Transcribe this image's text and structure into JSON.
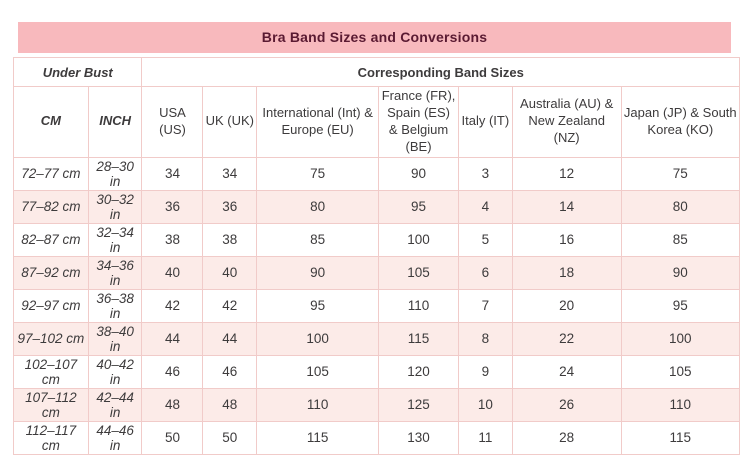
{
  "chart_data": {
    "type": "table",
    "title": "Bra Band Sizes and Conversions",
    "group_headers": [
      {
        "label": "Under Bust",
        "colspan": 2
      },
      {
        "label": "Corresponding Band Sizes",
        "colspan": 7
      }
    ],
    "columns": [
      "CM",
      "INCH",
      "USA (US)",
      "UK (UK)",
      "International (Int) & Europe (EU)",
      "France (FR), Spain (ES) & Belgium (BE)",
      "Italy (IT)",
      "Australia (AU) & New Zealand (NZ)",
      "Japan (JP) & South Korea (KO)"
    ],
    "rows": [
      [
        "72–77 cm",
        "28–30 in",
        "34",
        "34",
        "75",
        "90",
        "3",
        "12",
        "75"
      ],
      [
        "77–82 cm",
        "30–32 in",
        "36",
        "36",
        "80",
        "95",
        "4",
        "14",
        "80"
      ],
      [
        "82–87 cm",
        "32–34 in",
        "38",
        "38",
        "85",
        "100",
        "5",
        "16",
        "85"
      ],
      [
        "87–92 cm",
        "34–36 in",
        "40",
        "40",
        "90",
        "105",
        "6",
        "18",
        "90"
      ],
      [
        "92–97 cm",
        "36–38 in",
        "42",
        "42",
        "95",
        "110",
        "7",
        "20",
        "95"
      ],
      [
        "97–102 cm",
        "38–40 in",
        "44",
        "44",
        "100",
        "115",
        "8",
        "22",
        "100"
      ],
      [
        "102–107 cm",
        "40–42 in",
        "46",
        "46",
        "105",
        "120",
        "9",
        "24",
        "105"
      ],
      [
        "107–112 cm",
        "42–44 in",
        "48",
        "48",
        "110",
        "125",
        "10",
        "26",
        "110"
      ],
      [
        "112–117 cm",
        "44–46 in",
        "50",
        "50",
        "115",
        "130",
        "11",
        "28",
        "115"
      ]
    ]
  },
  "colors": {
    "title_bg": "#f8b9bd",
    "title_text": "#5a1a32",
    "row_alt_bg": "#fcebe8",
    "border": "#f1cbc9",
    "text": "#3d3b3c"
  }
}
